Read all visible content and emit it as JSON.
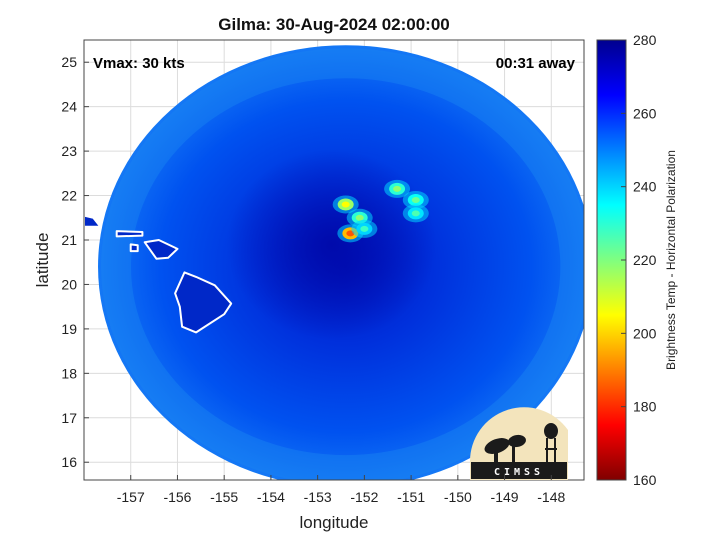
{
  "chart_data": {
    "type": "heatmap",
    "title": "Gilma: 30-Aug-2024 02:00:00",
    "annotations": {
      "left": "Vmax: 30 kts",
      "right": "00:31 away"
    },
    "xlabel": "longitude",
    "ylabel": "latitude",
    "xlim": [
      -158.0,
      -147.3
    ],
    "ylim": [
      15.6,
      25.5
    ],
    "x_ticks": [
      -157,
      -156,
      -155,
      -154,
      -153,
      -152,
      -151,
      -150,
      -149,
      -148
    ],
    "y_ticks": [
      16,
      17,
      18,
      19,
      20,
      21,
      22,
      23,
      24,
      25
    ],
    "grid": true,
    "colorbar": {
      "label": "Brightness Temp - Horizontal Polarization",
      "min": 160,
      "max": 280,
      "ticks": [
        160,
        180,
        200,
        220,
        240,
        260,
        280
      ],
      "colormap": "jet"
    },
    "swath": {
      "center_lon": -152.4,
      "center_lat": 20.4,
      "radius_deg": 5.3
    },
    "storm_center": {
      "lon": -152.7,
      "lat": 20.9
    },
    "cold_cells": [
      {
        "lon": -152.4,
        "lat": 21.8,
        "tb": 205
      },
      {
        "lon": -152.1,
        "lat": 21.5,
        "tb": 218
      },
      {
        "lon": -152.3,
        "lat": 21.15,
        "tb": 185
      },
      {
        "lon": -151.3,
        "lat": 22.15,
        "tb": 218
      },
      {
        "lon": -150.9,
        "lat": 21.9,
        "tb": 222
      },
      {
        "lon": -150.9,
        "lat": 21.6,
        "tb": 226
      },
      {
        "lon": -152.0,
        "lat": 21.25,
        "tb": 228
      }
    ],
    "land_outlines": [
      {
        "name": "Hawaii",
        "points": [
          [
            -155.85,
            20.27
          ],
          [
            -155.6,
            20.17
          ],
          [
            -155.2,
            19.98
          ],
          [
            -154.85,
            19.57
          ],
          [
            -155.0,
            19.33
          ],
          [
            -155.6,
            18.92
          ],
          [
            -155.9,
            19.05
          ],
          [
            -155.95,
            19.5
          ],
          [
            -156.05,
            19.8
          ],
          [
            -155.85,
            20.27
          ]
        ]
      },
      {
        "name": "Maui",
        "points": [
          [
            -156.7,
            20.95
          ],
          [
            -156.4,
            21.0
          ],
          [
            -156.0,
            20.8
          ],
          [
            -156.2,
            20.6
          ],
          [
            -156.45,
            20.58
          ],
          [
            -156.7,
            20.95
          ]
        ]
      },
      {
        "name": "Molokai",
        "points": [
          [
            -157.3,
            21.2
          ],
          [
            -156.75,
            21.18
          ],
          [
            -156.75,
            21.1
          ],
          [
            -157.3,
            21.08
          ],
          [
            -157.3,
            21.2
          ]
        ]
      },
      {
        "name": "Lanai",
        "points": [
          [
            -157.0,
            20.9
          ],
          [
            -156.85,
            20.88
          ],
          [
            -156.85,
            20.75
          ],
          [
            -157.0,
            20.75
          ],
          [
            -157.0,
            20.9
          ]
        ]
      },
      {
        "name": "Oahu",
        "points": [
          [
            -158.0,
            21.55
          ],
          [
            -157.8,
            21.5
          ],
          [
            -157.65,
            21.3
          ],
          [
            -158.0,
            21.3
          ],
          [
            -158.0,
            21.55
          ]
        ]
      }
    ]
  },
  "logo": {
    "text": "CIMSS"
  }
}
